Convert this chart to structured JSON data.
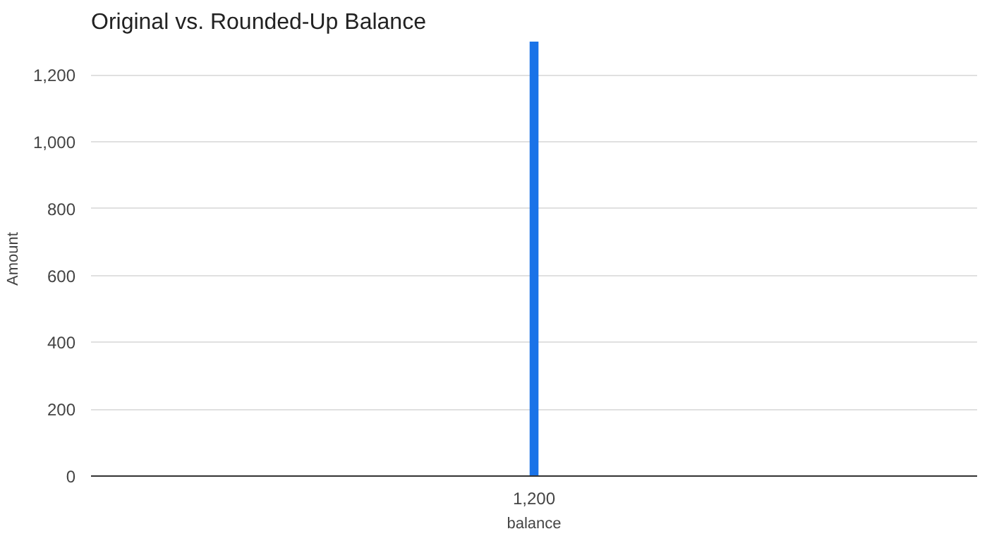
{
  "chart_data": {
    "type": "bar",
    "title": "Original vs. Rounded-Up Balance",
    "xlabel": "balance",
    "ylabel": "Amount",
    "categories": [
      "1,200"
    ],
    "series": [
      {
        "color": "#1a73e8",
        "values": [
          1300
        ]
      }
    ],
    "ylim": [
      0,
      1300
    ],
    "yticks": [
      0,
      {
        "value": 200,
        "label": "200"
      },
      {
        "value": 400,
        "label": "400"
      },
      {
        "value": 600,
        "label": "600"
      },
      {
        "value": 800,
        "label": "800"
      },
      {
        "value": 1000,
        "label": "1,000"
      },
      {
        "value": 1200,
        "label": "1,200"
      }
    ],
    "grid": "y"
  }
}
